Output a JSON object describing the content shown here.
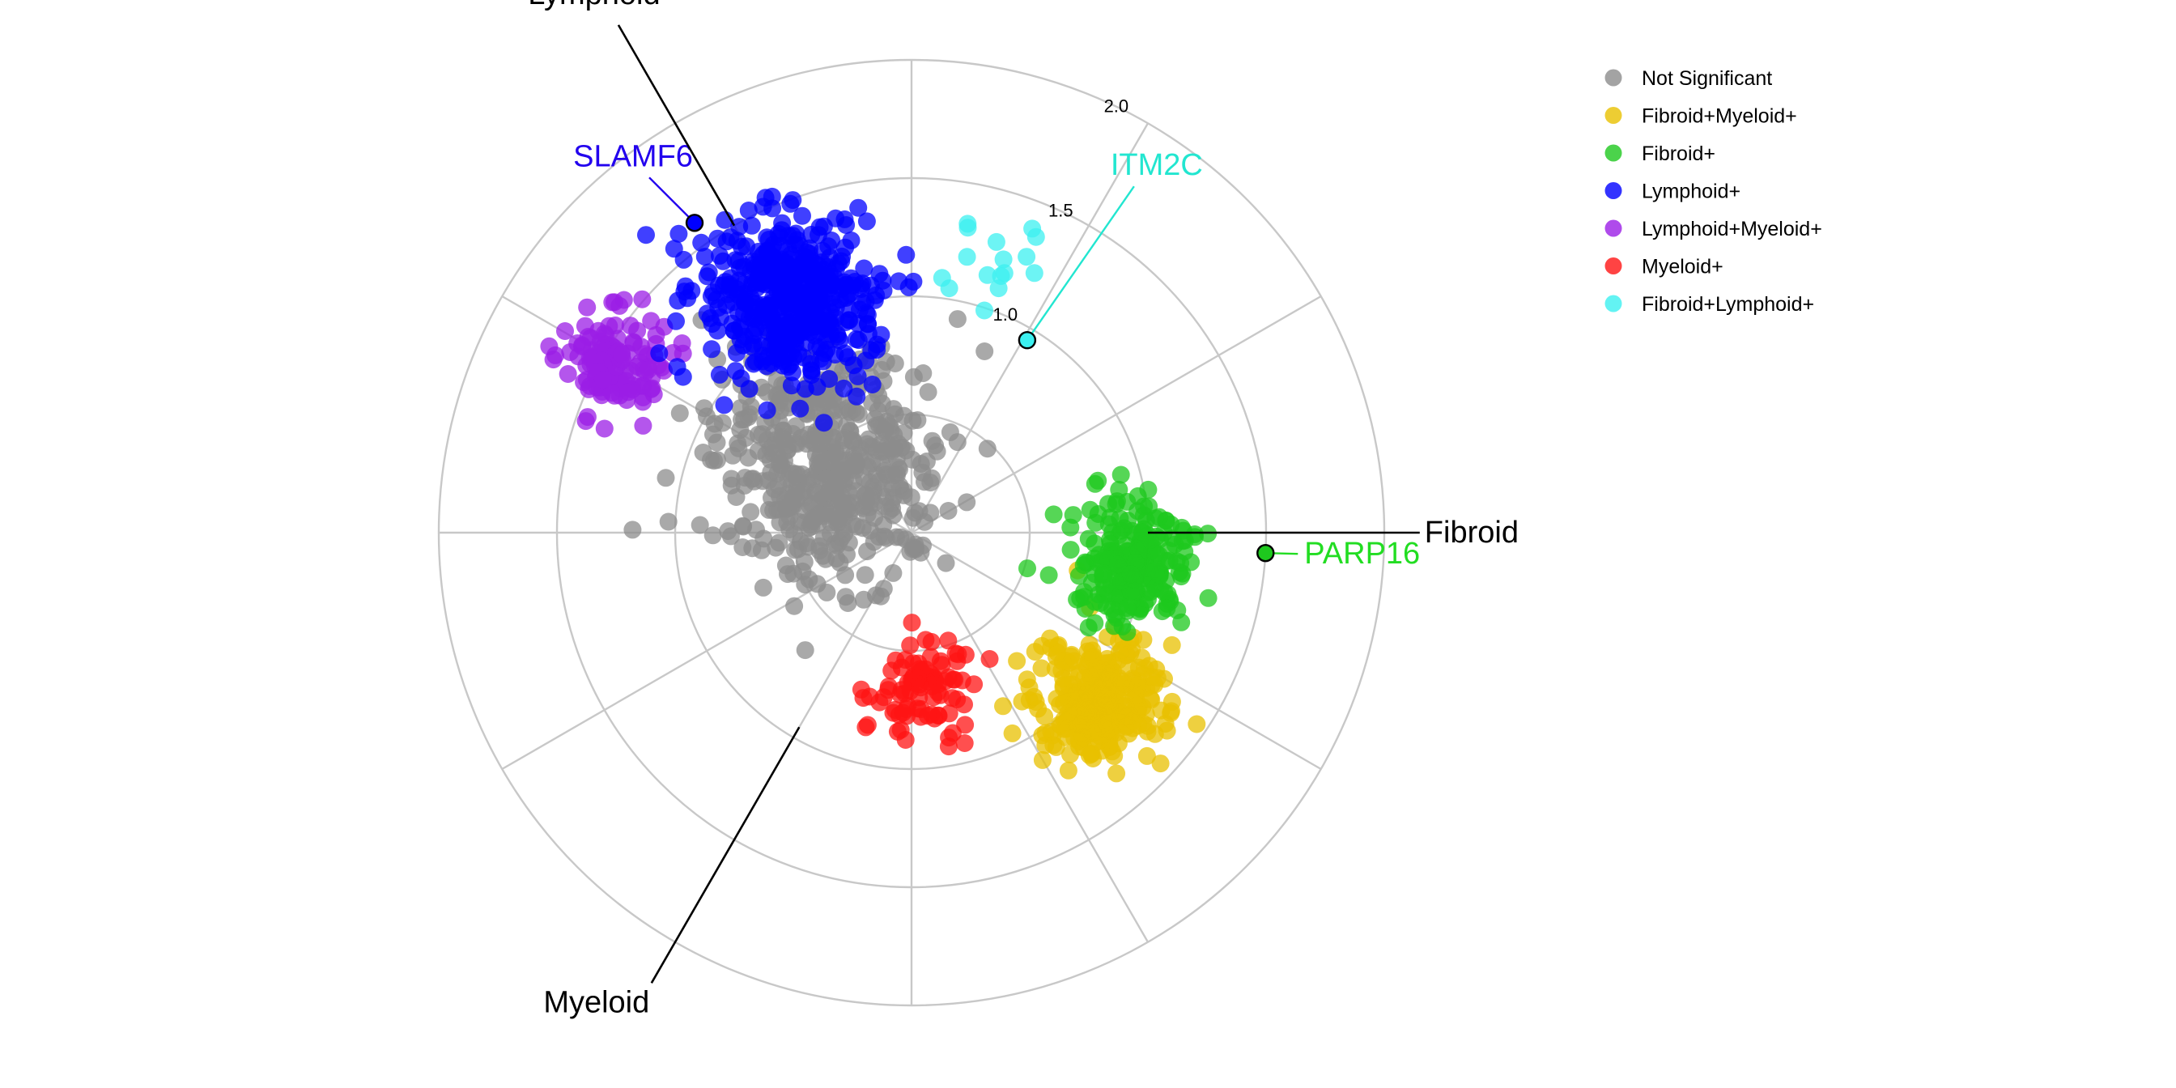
{
  "chart_data": {
    "type": "scatter",
    "subtype": "polar-radar-volcano",
    "axes": [
      {
        "name": "Fibroid",
        "angle_deg": 0
      },
      {
        "name": "Lymphoid",
        "angle_deg": 120
      },
      {
        "name": "Myeloid",
        "angle_deg": 240
      }
    ],
    "radial_ticks": [
      "1.0",
      "1.5",
      "2.0"
    ],
    "radial_tick_values": [
      1.0,
      1.5,
      2.0
    ],
    "grid": true,
    "legend_position": "top-right",
    "colors": {
      "Not Significant": "#8c8c8c",
      "Fibroid+Myeloid+": "#e8c000",
      "Fibroid+": "#1ec81e",
      "Lymphoid+": "#0000ff",
      "Lymphoid+Myeloid+": "#9b1ee6",
      "Myeloid+": "#ff1414",
      "Fibroid+Lymphoid+": "#3cf0f0"
    },
    "legend": [
      "Not Significant",
      "Fibroid+Myeloid+",
      "Fibroid+",
      "Lymphoid+",
      "Lymphoid+Myeloid+",
      "Myeloid+",
      "Fibroid+Lymphoid+"
    ],
    "clusters": [
      {
        "group": "Not Significant",
        "center_r": 0.45,
        "center_theta_deg": 140,
        "spread": 0.32,
        "count": 520
      },
      {
        "group": "Lymphoid+",
        "center_r": 1.12,
        "center_theta_deg": 118,
        "spread": 0.24,
        "count": 460
      },
      {
        "group": "Lymphoid+Myeloid+",
        "center_r": 1.45,
        "center_theta_deg": 150,
        "spread": 0.14,
        "count": 140
      },
      {
        "group": "Fibroid+",
        "center_r": 0.95,
        "center_theta_deg": -8,
        "spread": 0.16,
        "count": 230
      },
      {
        "group": "Fibroid+Myeloid+",
        "center_r": 1.05,
        "center_theta_deg": -42,
        "spread": 0.18,
        "count": 300
      },
      {
        "group": "Myeloid+",
        "center_r": 0.65,
        "center_theta_deg": -85,
        "spread": 0.16,
        "count": 90
      },
      {
        "group": "Fibroid+Lymphoid+",
        "center_r": 1.2,
        "center_theta_deg": 72,
        "spread": 0.16,
        "count": 16
      }
    ],
    "highlighted_genes": [
      {
        "label": "SLAMF6",
        "group": "Lymphoid+",
        "r": 1.6,
        "theta_deg": 125,
        "color": "#2200ee"
      },
      {
        "label": "ITM2C",
        "group": "Fibroid+Lymphoid+",
        "r": 0.95,
        "theta_deg": 59,
        "color": "#22e6d0"
      },
      {
        "label": "PARP16",
        "group": "Fibroid+",
        "r": 1.5,
        "theta_deg": -3.3,
        "color": "#22dd22"
      }
    ]
  }
}
